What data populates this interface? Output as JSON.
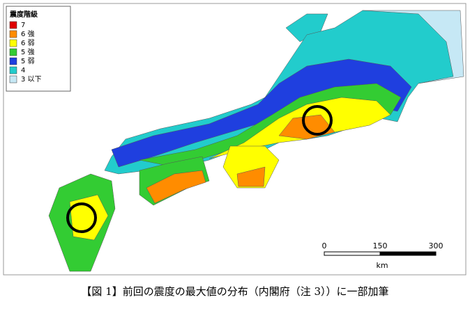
{
  "legend": {
    "title": "震度階級",
    "items": [
      {
        "label": "7",
        "color": "#e00000"
      },
      {
        "label": "6 強",
        "color": "#ff8c00"
      },
      {
        "label": "6 弱",
        "color": "#ffff00"
      },
      {
        "label": "5 強",
        "color": "#33cc33"
      },
      {
        "label": "5 弱",
        "color": "#1f3fdf"
      },
      {
        "label": "4",
        "color": "#22cccc"
      },
      {
        "label": "3 以下",
        "color": "#c6e8f5"
      }
    ]
  },
  "scale_bar": {
    "labels": [
      "0",
      "150",
      "300"
    ],
    "unit": "km"
  },
  "caption": "【図 1】前回の震度の最大値の分布（内閣府（注 3））に一部加筆"
}
